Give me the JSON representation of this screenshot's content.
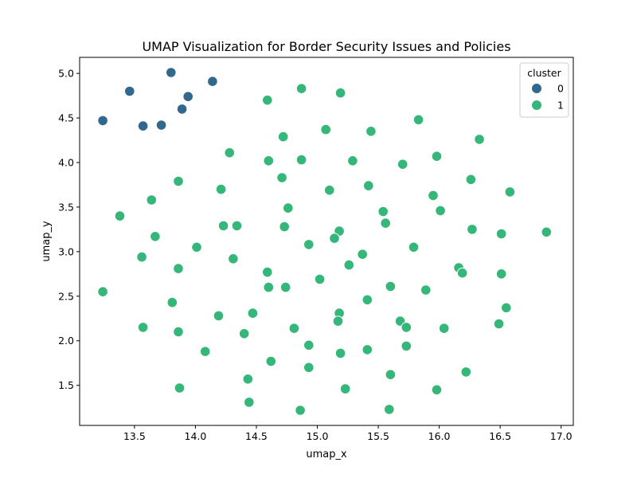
{
  "chart_data": {
    "type": "scatter",
    "title": "UMAP Visualization for Border Security Issues and Policies",
    "xlabel": "umap_x",
    "ylabel": "umap_y",
    "xlim": [
      13.05,
      17.1
    ],
    "ylim": [
      1.05,
      5.18
    ],
    "xticks": [
      13.5,
      14.0,
      14.5,
      15.0,
      15.5,
      16.0,
      16.5,
      17.0
    ],
    "xtick_labels": [
      "13.5",
      "14.0",
      "14.5",
      "15.0",
      "15.5",
      "16.0",
      "16.5",
      "17.0"
    ],
    "yticks": [
      1.5,
      2.0,
      2.5,
      3.0,
      3.5,
      4.0,
      4.5,
      5.0
    ],
    "ytick_labels": [
      "1.5",
      "2.0",
      "2.5",
      "3.0",
      "3.5",
      "4.0",
      "4.5",
      "5.0"
    ],
    "grid": false,
    "legend": {
      "title": "cluster",
      "placement": "top-right"
    },
    "series": [
      {
        "name": "0",
        "color": "#31688e",
        "points": [
          [
            13.8,
            5.01
          ],
          [
            14.14,
            4.91
          ],
          [
            13.46,
            4.8
          ],
          [
            13.94,
            4.74
          ],
          [
            13.89,
            4.6
          ],
          [
            13.24,
            4.47
          ],
          [
            13.72,
            4.42
          ],
          [
            13.57,
            4.41
          ]
        ]
      },
      {
        "name": "1",
        "color": "#35b779",
        "points": [
          [
            14.87,
            4.83
          ],
          [
            15.19,
            4.78
          ],
          [
            14.59,
            4.7
          ],
          [
            15.83,
            4.48
          ],
          [
            15.07,
            4.37
          ],
          [
            15.44,
            4.35
          ],
          [
            14.72,
            4.29
          ],
          [
            16.33,
            4.26
          ],
          [
            14.28,
            4.11
          ],
          [
            15.98,
            4.07
          ],
          [
            14.6,
            4.02
          ],
          [
            14.87,
            4.03
          ],
          [
            15.29,
            4.02
          ],
          [
            15.7,
            3.98
          ],
          [
            14.71,
            3.83
          ],
          [
            13.86,
            3.79
          ],
          [
            16.26,
            3.81
          ],
          [
            14.21,
            3.7
          ],
          [
            15.1,
            3.69
          ],
          [
            15.42,
            3.74
          ],
          [
            16.58,
            3.67
          ],
          [
            15.95,
            3.63
          ],
          [
            13.64,
            3.58
          ],
          [
            14.76,
            3.49
          ],
          [
            16.01,
            3.46
          ],
          [
            15.54,
            3.45
          ],
          [
            13.38,
            3.4
          ],
          [
            15.56,
            3.32
          ],
          [
            14.23,
            3.29
          ],
          [
            14.34,
            3.29
          ],
          [
            14.73,
            3.28
          ],
          [
            15.18,
            3.23
          ],
          [
            16.27,
            3.25
          ],
          [
            16.51,
            3.2
          ],
          [
            16.88,
            3.22
          ],
          [
            13.67,
            3.17
          ],
          [
            15.14,
            3.15
          ],
          [
            14.93,
            3.08
          ],
          [
            14.01,
            3.05
          ],
          [
            15.79,
            3.05
          ],
          [
            15.37,
            2.97
          ],
          [
            13.56,
            2.94
          ],
          [
            14.31,
            2.92
          ],
          [
            15.26,
            2.85
          ],
          [
            13.86,
            2.81
          ],
          [
            16.16,
            2.82
          ],
          [
            16.19,
            2.76
          ],
          [
            14.59,
            2.77
          ],
          [
            15.02,
            2.69
          ],
          [
            16.51,
            2.75
          ],
          [
            14.6,
            2.6
          ],
          [
            14.74,
            2.6
          ],
          [
            15.6,
            2.61
          ],
          [
            15.89,
            2.57
          ],
          [
            13.24,
            2.55
          ],
          [
            15.41,
            2.46
          ],
          [
            13.81,
            2.43
          ],
          [
            16.55,
            2.37
          ],
          [
            14.47,
            2.31
          ],
          [
            15.18,
            2.31
          ],
          [
            14.19,
            2.28
          ],
          [
            15.17,
            2.22
          ],
          [
            15.68,
            2.22
          ],
          [
            16.49,
            2.19
          ],
          [
            15.73,
            2.15
          ],
          [
            13.57,
            2.15
          ],
          [
            14.81,
            2.14
          ],
          [
            16.04,
            2.14
          ],
          [
            13.86,
            2.1
          ],
          [
            14.4,
            2.08
          ],
          [
            14.93,
            1.95
          ],
          [
            15.73,
            1.94
          ],
          [
            15.41,
            1.9
          ],
          [
            14.08,
            1.88
          ],
          [
            15.19,
            1.86
          ],
          [
            14.62,
            1.77
          ],
          [
            14.93,
            1.7
          ],
          [
            16.22,
            1.65
          ],
          [
            15.6,
            1.62
          ],
          [
            14.43,
            1.57
          ],
          [
            13.87,
            1.47
          ],
          [
            15.23,
            1.46
          ],
          [
            15.98,
            1.45
          ],
          [
            14.44,
            1.31
          ],
          [
            14.86,
            1.22
          ],
          [
            15.59,
            1.23
          ]
        ]
      }
    ]
  }
}
